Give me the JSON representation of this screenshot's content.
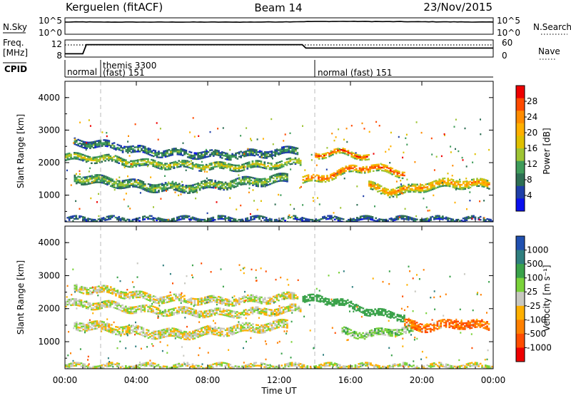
{
  "header": {
    "station": "Kerguelen (fitACF)",
    "beam": "Beam 14",
    "date": "23/Nov/2015"
  },
  "top_panels": {
    "nsky_label": "N.Sky",
    "nsearch_label": "N.Search",
    "nsky_ticks": [
      "10^5",
      "10^0"
    ],
    "freq_label_1": "Freq.",
    "freq_label_2": "[MHz]",
    "freq_ticks": [
      "12",
      "8"
    ],
    "nave_label": "Nave",
    "nave_ticks": [
      "60",
      "0"
    ],
    "cpid_label": "CPID",
    "cpid_segments": [
      {
        "name": "normal",
        "start_hour": 0.0,
        "end_hour": 2.0
      },
      {
        "name": "themis 3300",
        "start_hour": 2.0,
        "end_hour": 14.0
      },
      {
        "name": "(fast) 151",
        "start_hour": 2.0,
        "end_hour": 14.0
      },
      {
        "name": "normal (fast) 151",
        "start_hour": 14.0,
        "end_hour": 24.0
      }
    ]
  },
  "panels": {
    "power": {
      "ylabel": "Slant Range [km]",
      "yticks": [
        "4000",
        "3000",
        "2000",
        "1000"
      ],
      "cbar_label": "Power [dB]",
      "cbar_ticks": [
        "28",
        "24",
        "20",
        "16",
        "12",
        "8",
        "4"
      ],
      "cbar_colors": [
        "#ee0000",
        "#ff4a00",
        "#ff8c00",
        "#ffb000",
        "#dfc000",
        "#9ec434",
        "#3f9c5a",
        "#2e6f54",
        "#1f3fa8",
        "#0a10ee"
      ]
    },
    "velocity": {
      "ylabel": "Slant Range [km]",
      "yticks": [
        "4000",
        "3000",
        "2000",
        "1000"
      ],
      "cbar_label": "Velocity [m s⁻¹]",
      "cbar_ticks": [
        "1000",
        "500",
        "100",
        "25",
        "-25",
        "-100",
        "-500",
        "-1000"
      ],
      "cbar_colors": [
        "#2050b0",
        "#2f7f7f",
        "#3aa24a",
        "#7ad23a",
        "#c8c8c0",
        "#ffb000",
        "#ff8000",
        "#ff4d00",
        "#ee0000"
      ]
    }
  },
  "xaxis": {
    "label": "Time UT",
    "ticks": [
      "00:00",
      "04:00",
      "08:00",
      "12:00",
      "16:00",
      "20:00",
      "00:00"
    ]
  },
  "chart_data": [
    {
      "type": "line",
      "title": "Kerguelen (fitACF) Beam 14 23/Nov/2015",
      "series": [
        {
          "name": "N.Sky",
          "x": [
            0,
            1,
            2,
            4,
            8,
            10,
            12,
            14,
            16,
            18,
            20,
            22,
            24
          ],
          "values": [
            50000,
            60000,
            50000,
            50000,
            50000,
            50000,
            60000,
            90000,
            100000,
            80000,
            70000,
            60000,
            50000
          ]
        },
        {
          "name": "N.Search",
          "x": [
            0,
            24
          ],
          "values": [
            0,
            0
          ]
        },
        {
          "name": "Freq.",
          "x": [
            0,
            1,
            1.2,
            13.3,
            13.5,
            24
          ],
          "values": [
            8.5,
            8.5,
            12.5,
            12.5,
            11.0,
            11.0
          ]
        },
        {
          "name": "Nave",
          "x": [
            0,
            24
          ],
          "values": [
            45,
            45
          ]
        }
      ]
    },
    {
      "type": "heatmap",
      "title": "Power [dB]",
      "xlabel": "Time UT",
      "ylabel": "Slant Range [km]",
      "xlim": [
        0,
        24
      ],
      "ylim": [
        180,
        4500
      ],
      "zlim": [
        0,
        30
      ],
      "bands": [
        {
          "x_start": 0.0,
          "x_end": 13.2,
          "y_center": [
            2200,
            2150,
            2000,
            1950,
            1900,
            1950,
            2050
          ],
          "thickness": 200,
          "value": 14
        },
        {
          "x_start": 0.5,
          "x_end": 13.0,
          "y_center": [
            2650,
            2550,
            2350,
            2300,
            2250,
            2300,
            2400
          ],
          "thickness": 180,
          "value": 8
        },
        {
          "x_start": 0.5,
          "x_end": 12.5,
          "y_center": [
            1550,
            1450,
            1300,
            1250,
            1350,
            1450,
            1550
          ],
          "thickness": 240,
          "value": 12
        },
        {
          "x_start": 13.3,
          "x_end": 19.0,
          "y_center": [
            1500,
            1550,
            1700,
            1850,
            1900,
            1800,
            1700
          ],
          "thickness": 220,
          "value": 24
        },
        {
          "x_start": 14.0,
          "x_end": 17.0,
          "y_center": [
            2250,
            2300,
            2350,
            2350,
            2300,
            2250,
            2200
          ],
          "thickness": 160,
          "value": 24
        },
        {
          "x_start": 17.0,
          "x_end": 23.8,
          "y_center": [
            1300,
            1150,
            1200,
            1350,
            1400,
            1400,
            1350
          ],
          "thickness": 260,
          "value": 20
        },
        {
          "x_start": 0.0,
          "x_end": 24.0,
          "y_center": [
            300,
            300,
            300,
            300,
            300,
            300,
            300
          ],
          "thickness": 120,
          "value": 6
        }
      ]
    },
    {
      "type": "heatmap",
      "title": "Velocity [m s⁻¹]",
      "xlabel": "Time UT",
      "ylabel": "Slant Range [km]",
      "xlim": [
        0,
        24
      ],
      "ylim": [
        180,
        4500
      ],
      "zlim": [
        -1000,
        1000
      ],
      "bands": [
        {
          "x_start": 0.0,
          "x_end": 13.2,
          "y_center": [
            2200,
            2150,
            2000,
            1950,
            1900,
            1950,
            2050
          ],
          "thickness": 220,
          "value": 0
        },
        {
          "x_start": 0.5,
          "x_end": 13.0,
          "y_center": [
            2650,
            2550,
            2350,
            2300,
            2250,
            2300,
            2400
          ],
          "thickness": 180,
          "value": 0
        },
        {
          "x_start": 0.5,
          "x_end": 12.5,
          "y_center": [
            1550,
            1450,
            1300,
            1250,
            1350,
            1450,
            1550
          ],
          "thickness": 240,
          "value": 0
        },
        {
          "x_start": 13.3,
          "x_end": 19.0,
          "y_center": [
            2300,
            2350,
            2250,
            2100,
            1950,
            1850,
            1800
          ],
          "thickness": 220,
          "value": 150
        },
        {
          "x_start": 15.5,
          "x_end": 19.5,
          "y_center": [
            1350,
            1300,
            1250,
            1300,
            1350,
            1400,
            1350
          ],
          "thickness": 220,
          "value": 50
        },
        {
          "x_start": 19.0,
          "x_end": 23.8,
          "y_center": [
            1550,
            1500,
            1500,
            1550,
            1600,
            1550,
            1500
          ],
          "thickness": 260,
          "value": -300
        },
        {
          "x_start": 0.0,
          "x_end": 24.0,
          "y_center": [
            300,
            300,
            300,
            300,
            300,
            300,
            300
          ],
          "thickness": 120,
          "value": 0
        }
      ]
    }
  ]
}
